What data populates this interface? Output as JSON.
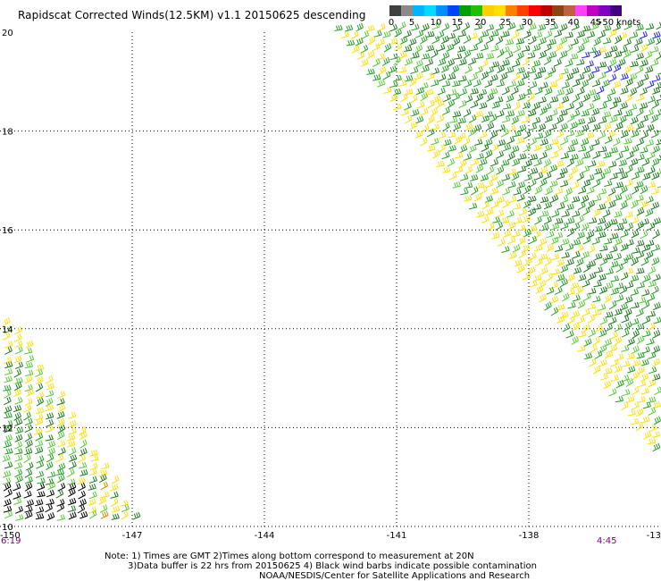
{
  "title": "Rapidscat Corrected Winds(12.5KM) v1.1 20150625 descending",
  "colorbar": {
    "colors": [
      "#404040",
      "#8a8a8a",
      "#00b4ff",
      "#00dcff",
      "#0090ff",
      "#0040ff",
      "#00a000",
      "#20c000",
      "#ffd000",
      "#ffe000",
      "#ff8000",
      "#ff4000",
      "#ff0000",
      "#c00000",
      "#8b4513",
      "#c06040",
      "#ff40ff",
      "#c000c0",
      "#8000c0",
      "#400080"
    ],
    "labels": [
      "0",
      "5",
      "10",
      "15",
      "20",
      "25",
      "30",
      "35",
      "40",
      "45",
      ">50"
    ],
    "unit": "knots"
  },
  "axes": {
    "lat_labels": [
      "20",
      "18",
      "16",
      "14",
      "12",
      "10"
    ],
    "lon_labels": [
      "-150",
      "-147",
      "-144",
      "-141",
      "-138",
      "-13"
    ],
    "lat_range": [
      10,
      20
    ],
    "lon_range": [
      -150,
      -135
    ],
    "grid": true
  },
  "time_labels": {
    "left": "6:19",
    "right": "4:45"
  },
  "notes": {
    "line1": "Note: 1) Times are GMT 2)Times along bottom correspond to measurement at 20N",
    "line2": "3)Data buffer is 22 hrs from 20150625 4) Black wind barbs indicate possible contamination",
    "line3": "NOAA/NESDIS/Center for Satellite Applications and Research"
  },
  "barb_colors": {
    "green_dark": "#1a7a1a",
    "green": "#22a022",
    "green_light": "#55cc33",
    "yellow": "#ffe000",
    "orange": "#e08000",
    "black": "#000000",
    "blue": "#2020ff"
  }
}
